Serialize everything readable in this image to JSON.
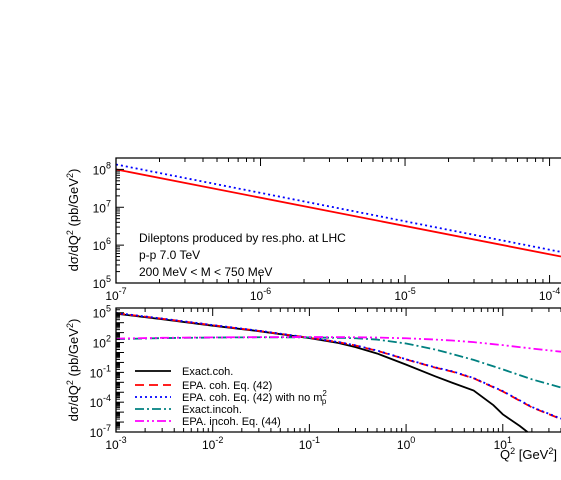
{
  "chart_data": [
    {
      "type": "line",
      "xscale": "log",
      "yscale": "log",
      "xlim": [
        1e-07,
        0.00012
      ],
      "ylim": [
        100000.0,
        200000000.0
      ],
      "xticks": [
        {
          "value": 1e-07,
          "mantissa": "10",
          "exp": "-7"
        },
        {
          "value": 1e-06,
          "mantissa": "10",
          "exp": "-6"
        },
        {
          "value": 1e-05,
          "mantissa": "10",
          "exp": "-5"
        },
        {
          "value": 0.0001,
          "mantissa": "10",
          "exp": "-4"
        }
      ],
      "yticks": [
        {
          "value": 100000.0,
          "mantissa": "10",
          "exp": "5"
        },
        {
          "value": 1000000.0,
          "mantissa": "10",
          "exp": "6"
        },
        {
          "value": 10000000.0,
          "mantissa": "10",
          "exp": "7"
        },
        {
          "value": 100000000.0,
          "mantissa": "10",
          "exp": "8"
        }
      ],
      "ylabel": {
        "a": "dσ/dQ",
        "a_sup": "2",
        "b": " (pb/GeV",
        "b_sup": "2",
        "c": ")"
      },
      "annotations": [
        "Dileptons produced by res.pho. at LHC",
        "p-p 7.0 TeV",
        "200 MeV < M < 750 MeV"
      ],
      "series": [
        {
          "color": "#ff0000",
          "dash": "solid",
          "x": [
            1e-07,
            0.00012
          ],
          "y": [
            100000000.0,
            500000.0
          ]
        },
        {
          "color": "#0000ff",
          "dash": "dotted",
          "x": [
            1e-07,
            0.00012
          ],
          "y": [
            135000000.0,
            660000.0
          ]
        }
      ]
    },
    {
      "type": "line",
      "xscale": "log",
      "yscale": "log",
      "xlim": [
        0.001,
        40
      ],
      "ylim": [
        1e-07,
        300000.0
      ],
      "xlabel": {
        "a": "Q",
        "a_sup": "2",
        "b": " [GeV",
        "b_sup": "2",
        "c": "]"
      },
      "ylabel": {
        "a": "dσ/dQ",
        "a_sup": "2",
        "b": " (pb/GeV",
        "b_sup": "2",
        "c": ")"
      },
      "xticks": [
        {
          "value": 0.001,
          "mantissa": "10",
          "exp": "-3"
        },
        {
          "value": 0.01,
          "mantissa": "10",
          "exp": "-2"
        },
        {
          "value": 0.1,
          "mantissa": "10",
          "exp": "-1"
        },
        {
          "value": 1,
          "mantissa": "10",
          "exp": "0"
        },
        {
          "value": 10,
          "mantissa": "10",
          "exp": "1"
        }
      ],
      "yticks": [
        {
          "value": 1e-07,
          "mantissa": "10",
          "exp": "-7"
        },
        {
          "value": 0.0001,
          "mantissa": "10",
          "exp": "-4"
        },
        {
          "value": 0.1,
          "mantissa": "10",
          "exp": "-1"
        },
        {
          "value": 100.0,
          "mantissa": "10",
          "exp": "2"
        },
        {
          "value": 100000.0,
          "mantissa": "10",
          "exp": "5"
        }
      ],
      "series": [
        {
          "name": "Exact.coh.",
          "color": "#000000",
          "dash": "solid",
          "x": [
            0.001,
            0.003,
            0.01,
            0.03,
            0.1,
            0.2,
            0.3,
            0.5,
            1,
            2,
            3,
            5,
            8,
            10,
            15,
            18
          ],
          "y": [
            80000,
            22000,
            5000,
            1400,
            280,
            90,
            35,
            8,
            0.6,
            0.04,
            0.009,
            0.0015,
            5e-05,
            6e-06,
            4e-07,
            1e-07
          ]
        },
        {
          "name": "EPA. coh. Eq. (42)",
          "color": "#ff0000",
          "dash": "dashed",
          "x": [
            0.001,
            0.003,
            0.01,
            0.03,
            0.1,
            0.2,
            0.3,
            0.5,
            1,
            2,
            3,
            5,
            10,
            20,
            40
          ],
          "y": [
            90000,
            25000,
            5500,
            1500,
            300,
            110,
            50,
            15,
            2,
            0.3,
            0.12,
            0.025,
            0.0012,
            3e-05,
            2e-06
          ]
        },
        {
          "name": "EPA. coh. Eq. (42) with no m",
          "name_sub": "p",
          "name_sup": "2",
          "color": "#0000ff",
          "dash": "dotted",
          "x": [
            0.001,
            0.003,
            0.01,
            0.03,
            0.1,
            0.2,
            0.3,
            0.5,
            1,
            2,
            3,
            5,
            10,
            20,
            40
          ],
          "y": [
            95000,
            26000,
            5800,
            1550,
            310,
            112,
            52,
            16,
            2.1,
            0.32,
            0.13,
            0.027,
            0.0013,
            3.3e-05,
            2.2e-06
          ]
        },
        {
          "name": "Exact.incoh.",
          "color": "#008080",
          "dash": "dashdot",
          "x": [
            0.001,
            0.003,
            0.01,
            0.03,
            0.1,
            0.2,
            0.3,
            0.5,
            1,
            2,
            3,
            5,
            10,
            20,
            40
          ],
          "y": [
            220,
            280,
            320,
            340,
            330,
            300,
            270,
            200,
            80,
            20,
            7,
            1.8,
            0.2,
            0.02,
            0.003
          ]
        },
        {
          "name": "EPA. incoh. Eq. (44)",
          "color": "#ff00ff",
          "dash": "dashdotdot",
          "x": [
            0.001,
            0.003,
            0.01,
            0.03,
            0.1,
            0.2,
            0.3,
            0.5,
            1,
            2,
            3,
            5,
            10,
            20,
            40
          ],
          "y": [
            250,
            300,
            330,
            350,
            360,
            350,
            340,
            320,
            270,
            200,
            160,
            110,
            55,
            25,
            12
          ]
        }
      ]
    }
  ]
}
